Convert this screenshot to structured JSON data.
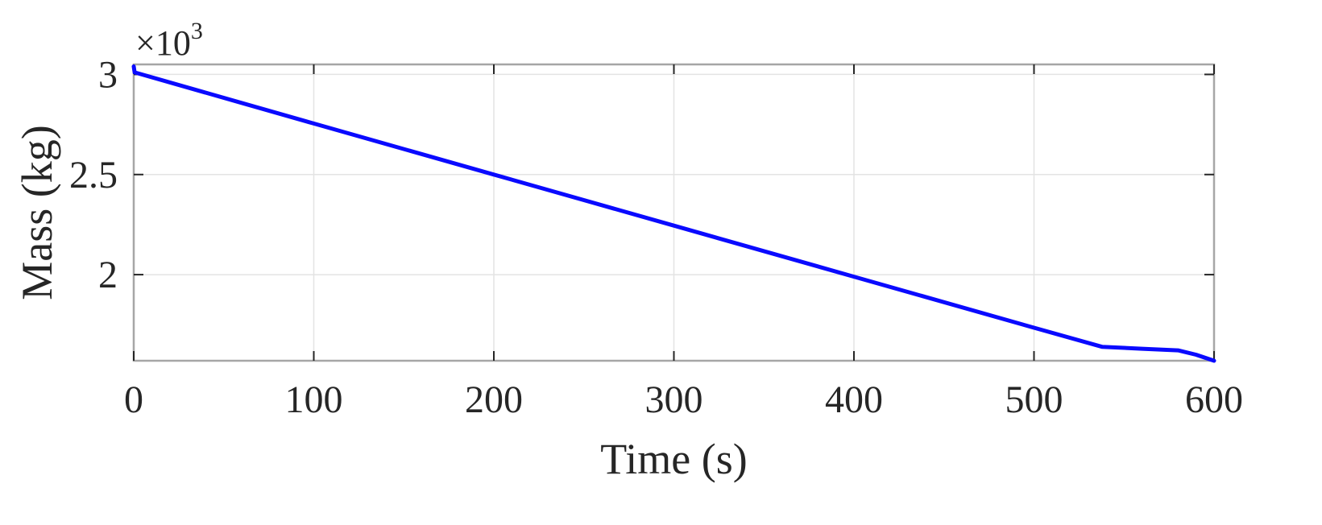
{
  "chart_data": {
    "type": "line",
    "xlabel": "Time (s)",
    "ylabel": "Mass (kg)",
    "y_exponent_label": "×10",
    "y_exponent_power": "3",
    "xlim": [
      0,
      600
    ],
    "ylim": [
      1.57,
      3.05
    ],
    "x_ticks": [
      "0",
      "100",
      "200",
      "300",
      "400",
      "500",
      "600"
    ],
    "y_ticks": [
      "2",
      "2.5",
      "3"
    ],
    "grid": true,
    "series_color": "#0a0aff",
    "series": [
      {
        "x": [
          0,
          0.5,
          100,
          200,
          300,
          400,
          500,
          538,
          560,
          580,
          590,
          600
        ],
        "y": [
          3.04,
          3.01,
          2.755,
          2.5,
          2.245,
          1.99,
          1.735,
          1.639,
          1.63,
          1.622,
          1.6,
          1.57
        ]
      }
    ]
  }
}
